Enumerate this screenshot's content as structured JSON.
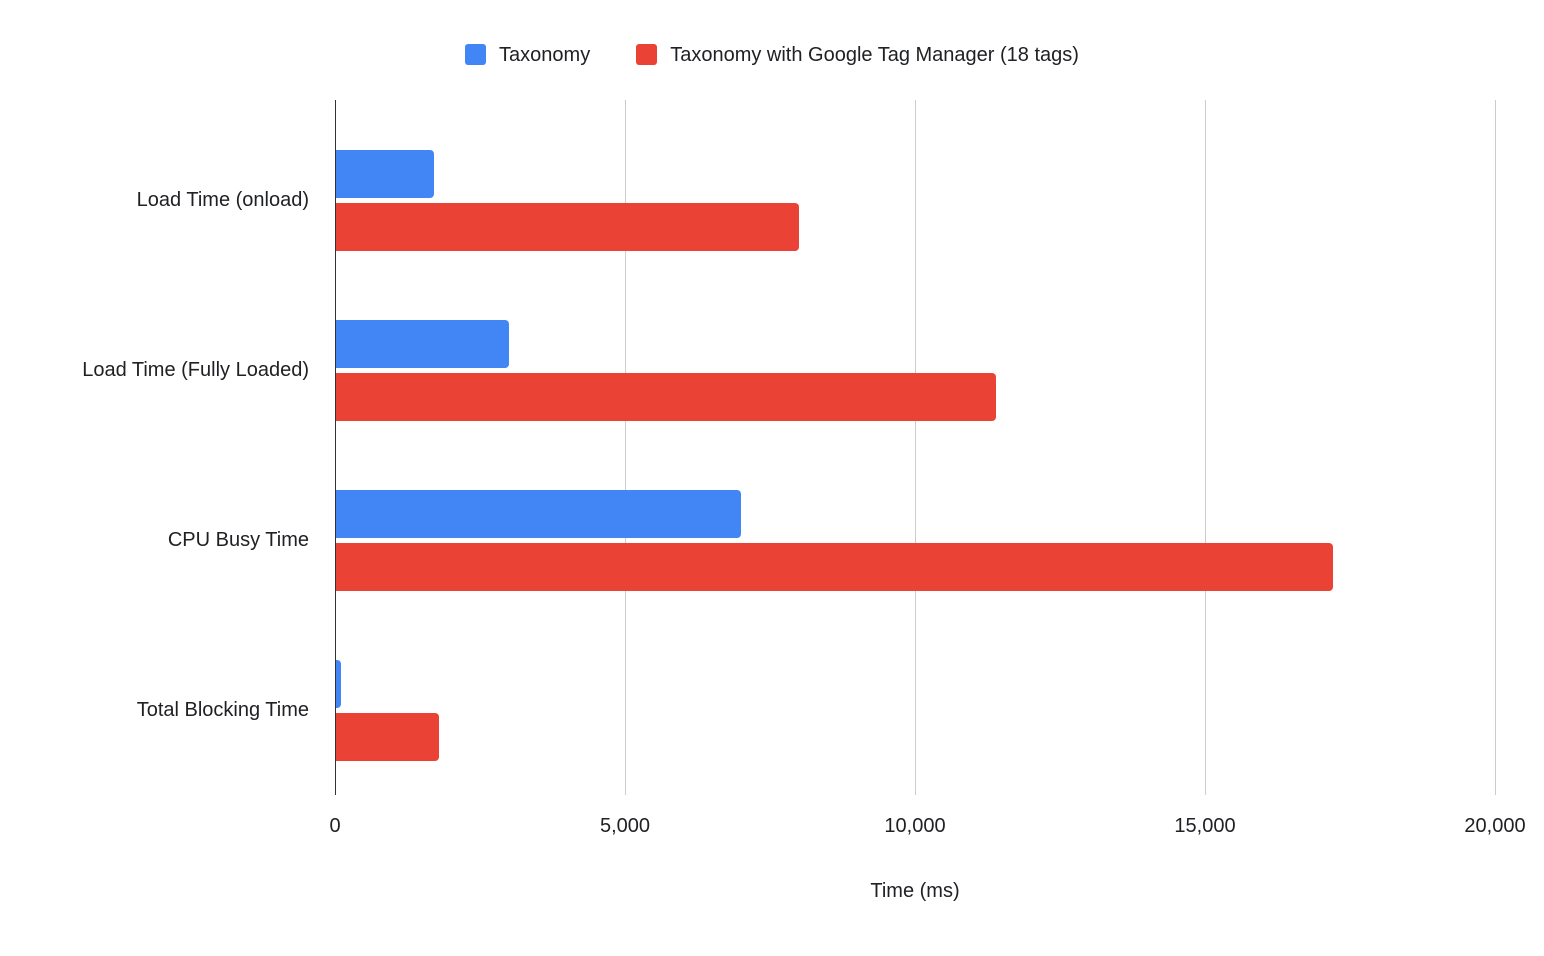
{
  "legend": {
    "position": "top",
    "items": [
      {
        "label": "Taxonomy",
        "color": "#4285F4"
      },
      {
        "label": "Taxonomy with Google Tag Manager (18 tags)",
        "color": "#EA4335"
      }
    ]
  },
  "chart_data": {
    "type": "bar",
    "orientation": "horizontal",
    "title": "",
    "xlabel": "Time (ms)",
    "ylabel": "",
    "categories": [
      "Load Time (onload)",
      "Load Time (Fully Loaded)",
      "CPU Busy Time",
      "Total Blocking Time"
    ],
    "series": [
      {
        "name": "Taxonomy",
        "color": "#4285F4",
        "values": [
          1700,
          3000,
          7000,
          100
        ]
      },
      {
        "name": "Taxonomy with Google Tag Manager (18 tags)",
        "color": "#EA4335",
        "values": [
          8000,
          11400,
          17200,
          1800
        ]
      }
    ],
    "xlim": [
      0,
      20000
    ],
    "xticks": [
      0,
      5000,
      10000,
      15000,
      20000
    ],
    "xtick_labels": [
      "0",
      "5,000",
      "10,000",
      "15,000",
      "20,000"
    ],
    "grid": true,
    "gridline_color": "#cccccc",
    "axis_line_color": "#333333",
    "legend_position": "top"
  }
}
